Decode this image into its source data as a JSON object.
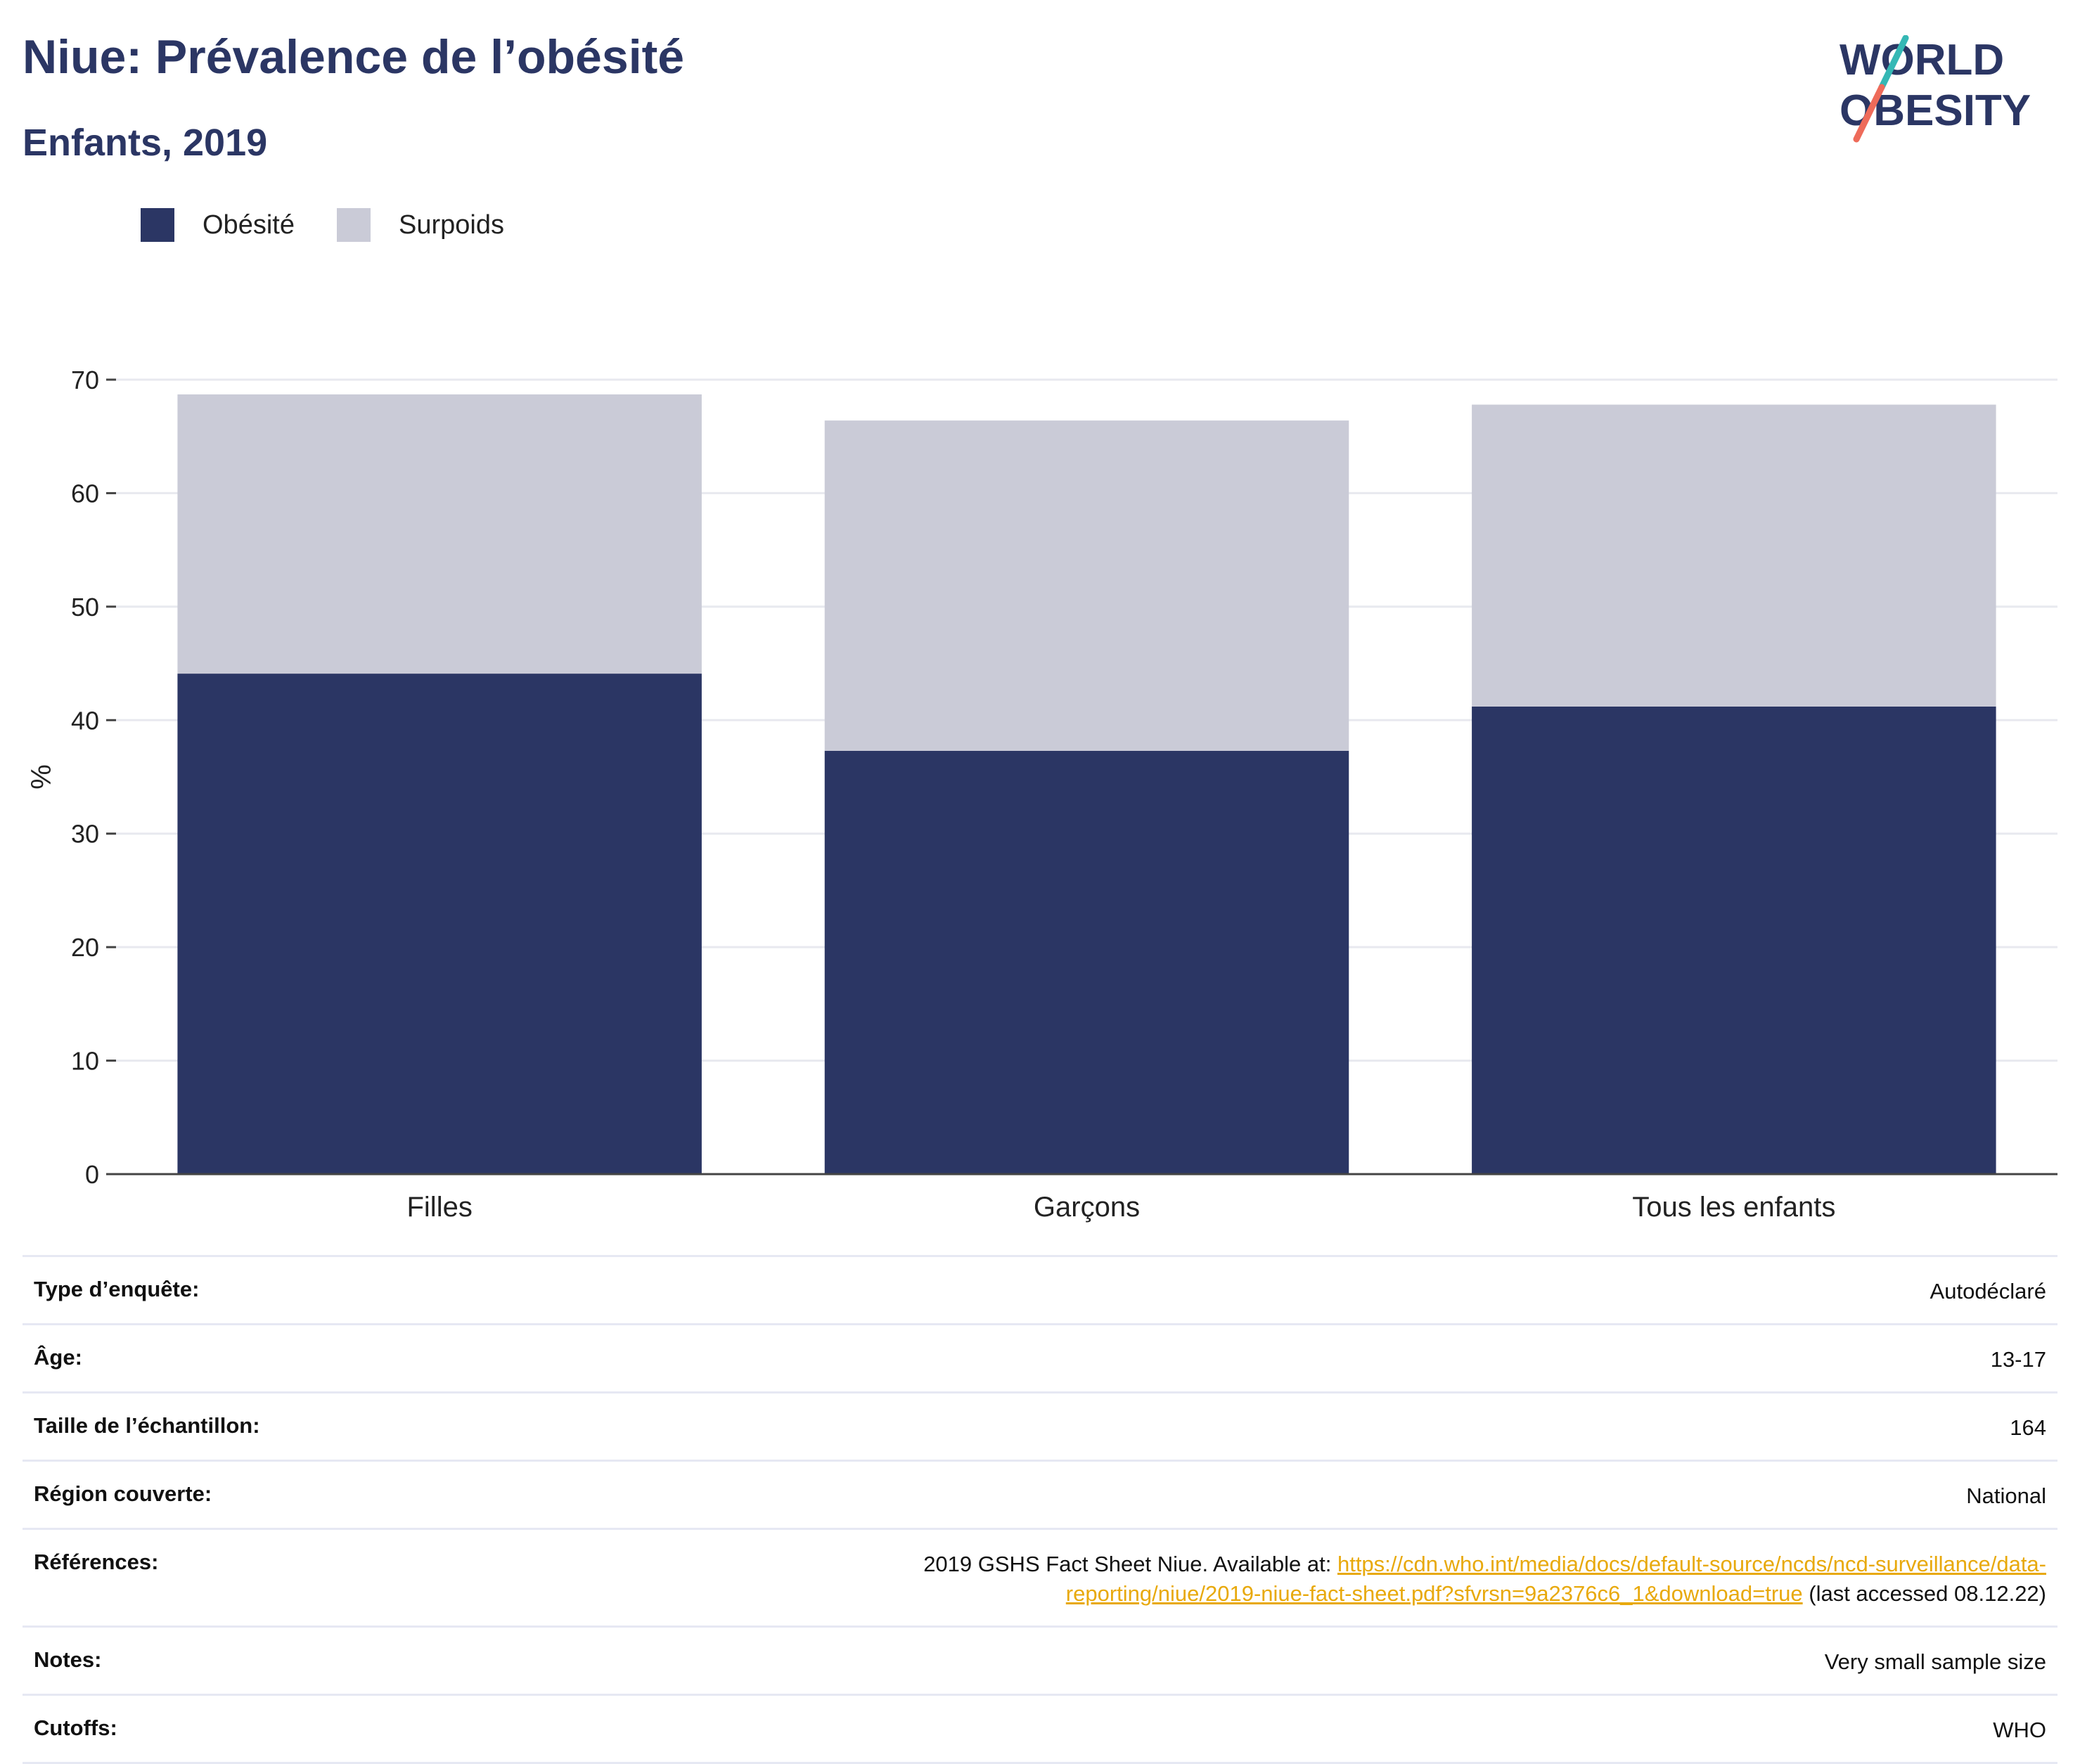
{
  "header": {
    "title": "Niue: Prévalence de l’obésité",
    "subtitle": "Enfants, 2019"
  },
  "logo": {
    "line1": "WORLD",
    "line2": "OBESITY"
  },
  "legend": [
    {
      "label": "Obésité",
      "color": "#2b3664"
    },
    {
      "label": "Surpoids",
      "color": "#cacbd7"
    }
  ],
  "chart_data": {
    "type": "bar",
    "stacked": true,
    "categories": [
      "Filles",
      "Garçons",
      "Tous les enfants"
    ],
    "series": [
      {
        "name": "Obésité",
        "color": "#2b3664",
        "values": [
          44.1,
          37.3,
          41.2
        ]
      },
      {
        "name": "Surpoids",
        "color": "#cacbd7",
        "values": [
          24.6,
          29.1,
          26.6
        ]
      }
    ],
    "ylabel": "%",
    "ylim": [
      0,
      70
    ],
    "yticks": [
      0,
      10,
      20,
      30,
      40,
      50,
      60,
      70
    ],
    "grid": true,
    "legend_position": "top-left"
  },
  "info": {
    "survey_type": {
      "label": "Type d’enquête:",
      "value": "Autodéclaré"
    },
    "age": {
      "label": "Âge:",
      "value": "13-17"
    },
    "sample_size": {
      "label": "Taille de l’échantillon:",
      "value": "164"
    },
    "region": {
      "label": "Région couverte:",
      "value": "National"
    },
    "references": {
      "label": "Références:",
      "prefix": "2019 GSHS Fact Sheet Niue. Available at: ",
      "link": "https://cdn.who.int/media/docs/default-source/ncds/ncd-surveillance/data-reporting/niue/2019-niue-fact-sheet.pdf?sfvrsn=9a2376c6_1&download=true",
      "suffix": " (last accessed 08.12.22)"
    },
    "notes": {
      "label": "Notes:",
      "value": "Very small sample size"
    },
    "cutoffs": {
      "label": "Cutoffs:",
      "value": "WHO"
    }
  }
}
